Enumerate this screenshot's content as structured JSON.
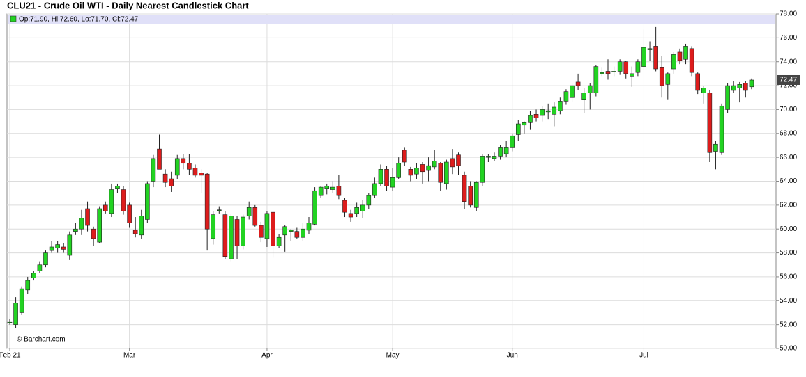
{
  "chart_data": {
    "type": "candlestick",
    "title": "CLU21 - Crude Oil WTI - Daily Nearest Candlestick Chart",
    "legend_text": "Op:71.90, Hi:72.60, Lo:71.70, Cl:72.47",
    "source": "© Barchart.com",
    "up_color": "#22d322",
    "down_color": "#dd1c1c",
    "grid": true,
    "categories": [
      "Feb 21",
      null,
      null,
      null,
      null,
      null,
      null,
      null,
      null,
      null,
      null,
      null,
      null,
      null,
      null,
      null,
      null,
      null,
      null,
      null,
      "Mar",
      null,
      null,
      null,
      null,
      null,
      null,
      null,
      null,
      null,
      null,
      null,
      null,
      null,
      null,
      null,
      null,
      null,
      null,
      null,
      null,
      null,
      null,
      "Apr",
      null,
      null,
      null,
      null,
      null,
      null,
      null,
      null,
      null,
      null,
      null,
      null,
      null,
      null,
      null,
      null,
      null,
      null,
      null,
      null,
      "May",
      null,
      null,
      null,
      null,
      null,
      null,
      null,
      null,
      null,
      null,
      null,
      null,
      null,
      null,
      null,
      null,
      null,
      null,
      null,
      "Jun",
      null,
      null,
      null,
      null,
      null,
      null,
      null,
      null,
      null,
      null,
      null,
      null,
      null,
      null,
      null,
      null,
      null,
      null,
      null,
      null,
      null,
      "Jul",
      null,
      null,
      null,
      null,
      null,
      null,
      null,
      null,
      null,
      null,
      null,
      null,
      null,
      null,
      null,
      null,
      null,
      null
    ],
    "open": [
      52.2,
      52.0,
      53.0,
      54.9,
      55.9,
      56.5,
      57.0,
      58.2,
      58.4,
      58.5,
      57.8,
      59.8,
      60.0,
      61.7,
      60.0,
      58.9,
      62.0,
      61.3,
      63.4,
      63.3,
      62.0,
      59.9,
      59.5,
      60.8,
      64.0,
      66.7,
      64.6,
      64.2,
      64.5,
      65.9,
      65.5,
      65.1,
      64.7,
      64.6,
      59.2,
      61.6,
      61.2,
      57.5,
      60.8,
      58.6,
      61.1,
      61.8,
      60.3,
      59.2,
      61.4,
      58.6,
      59.5,
      59.8,
      59.8,
      59.3,
      59.9,
      60.4,
      62.8,
      63.4,
      63.3,
      63.6,
      62.4,
      61.3,
      61.3,
      61.5,
      62.0,
      62.8,
      63.8,
      65.0,
      63.5,
      64.3,
      66.6,
      65.0,
      64.6,
      65.4,
      64.9,
      65.2,
      65.5,
      63.8,
      65.9,
      66.2,
      64.5,
      63.6,
      61.8,
      63.9,
      66.0,
      65.9,
      66.1,
      66.3,
      66.8,
      67.9,
      68.7,
      68.9,
      69.6,
      69.5,
      69.8,
      69.6,
      69.9,
      70.7,
      71.0,
      72.3,
      70.8,
      71.4,
      71.4,
      73.0,
      73.2,
      73.2,
      73.2,
      74.0,
      72.8,
      73.1,
      73.6,
      75.0,
      75.3,
      73.5,
      72.1,
      73.4,
      74.8,
      74.2,
      75.1,
      73.0,
      71.4,
      71.4,
      66.5,
      66.4,
      70.0,
      71.6,
      71.8,
      72.2,
      71.9
    ],
    "high": [
      52.5,
      54.3,
      55.2,
      56.0,
      56.5,
      57.3,
      58.2,
      59.0,
      59.0,
      58.8,
      59.8,
      60.5,
      61.6,
      62.3,
      60.2,
      61.9,
      62.3,
      63.8,
      63.8,
      63.6,
      62.2,
      61.0,
      61.6,
      64.0,
      66.2,
      67.9,
      65.0,
      64.8,
      66.2,
      66.3,
      66.3,
      65.4,
      65.0,
      64.7,
      61.5,
      61.9,
      61.5,
      61.3,
      61.1,
      61.2,
      62.3,
      62.0,
      60.6,
      61.5,
      61.5,
      59.6,
      60.3,
      60.0,
      60.1,
      60.5,
      61.0,
      63.5,
      63.6,
      63.8,
      64.0,
      64.5,
      62.6,
      61.6,
      62.2,
      62.4,
      63.0,
      64.3,
      65.4,
      65.3,
      65.1,
      66.0,
      66.8,
      65.2,
      65.5,
      65.6,
      66.0,
      66.6,
      65.6,
      65.8,
      66.7,
      66.4,
      64.8,
      64.0,
      64.0,
      66.3,
      66.3,
      66.4,
      67.0,
      67.4,
      68.0,
      69.1,
      69.0,
      69.9,
      70.0,
      70.3,
      70.5,
      70.6,
      71.0,
      71.7,
      72.2,
      73.0,
      71.8,
      72.2,
      73.7,
      73.5,
      74.2,
      73.6,
      74.2,
      74.1,
      73.6,
      74.2,
      76.7,
      75.7,
      76.9,
      74.5,
      73.1,
      74.8,
      75.1,
      75.5,
      75.3,
      73.1,
      72.0,
      71.6,
      67.4,
      70.5,
      72.2,
      72.4,
      72.3,
      72.4,
      72.6
    ],
    "low": [
      52.0,
      51.7,
      52.8,
      54.6,
      55.7,
      56.3,
      56.8,
      58.0,
      58.0,
      58.0,
      57.4,
      59.5,
      59.5,
      59.8,
      58.6,
      58.8,
      61.3,
      61.0,
      63.0,
      61.2,
      60.1,
      59.3,
      59.2,
      60.5,
      63.5,
      65.0,
      63.5,
      63.1,
      64.2,
      65.0,
      64.5,
      64.3,
      63.0,
      58.2,
      58.7,
      61.3,
      57.5,
      57.3,
      57.5,
      58.3,
      60.8,
      60.2,
      58.9,
      58.5,
      57.6,
      58.4,
      58.1,
      59.0,
      59.2,
      59.0,
      59.6,
      60.3,
      62.6,
      62.9,
      63.0,
      62.5,
      61.0,
      60.6,
      61.0,
      60.9,
      61.7,
      62.6,
      63.6,
      63.2,
      63.2,
      64.2,
      65.3,
      64.0,
      64.2,
      63.8,
      64.0,
      65.0,
      63.2,
      63.3,
      64.6,
      64.5,
      61.7,
      61.8,
      61.5,
      63.6,
      65.6,
      65.7,
      65.8,
      66.0,
      66.5,
      67.4,
      68.0,
      68.3,
      69.0,
      69.0,
      69.2,
      68.6,
      69.6,
      70.4,
      70.6,
      71.6,
      69.7,
      70.0,
      71.1,
      72.8,
      72.5,
      72.8,
      72.9,
      72.6,
      71.9,
      72.8,
      73.3,
      74.1,
      73.2,
      71.0,
      70.8,
      73.0,
      73.8,
      73.8,
      72.8,
      71.3,
      70.5,
      65.6,
      65.0,
      66.2,
      69.7,
      71.4,
      70.6,
      71.0,
      71.7
    ],
    "close": [
      52.2,
      53.8,
      55.0,
      55.7,
      56.3,
      57.0,
      58.0,
      58.5,
      58.7,
      58.3,
      59.5,
      60.0,
      60.9,
      60.3,
      59.2,
      61.7,
      61.5,
      63.3,
      63.6,
      61.5,
      60.5,
      59.6,
      61.1,
      63.8,
      65.9,
      65.0,
      63.9,
      63.6,
      65.9,
      65.5,
      65.0,
      64.5,
      64.5,
      60.0,
      61.2,
      61.6,
      57.7,
      61.1,
      58.6,
      61.0,
      61.8,
      60.3,
      59.3,
      61.3,
      58.6,
      59.3,
      60.2,
      59.9,
      59.3,
      60.0,
      60.5,
      63.2,
      63.5,
      63.6,
      63.5,
      62.8,
      61.4,
      61.0,
      61.8,
      62.0,
      62.8,
      63.8,
      65.0,
      63.6,
      64.3,
      65.5,
      65.6,
      64.5,
      65.1,
      64.8,
      65.3,
      65.7,
      63.9,
      65.6,
      65.2,
      65.3,
      62.3,
      62.0,
      63.9,
      66.1,
      66.1,
      66.1,
      66.8,
      66.8,
      67.8,
      68.8,
      68.9,
      69.5,
      69.3,
      70.0,
      69.9,
      70.2,
      70.7,
      71.5,
      72.0,
      72.0,
      71.4,
      72.0,
      73.6,
      73.1,
      73.0,
      73.2,
      74.0,
      73.0,
      73.0,
      74.0,
      75.2,
      75.1,
      73.4,
      72.0,
      73.0,
      74.6,
      74.1,
      75.3,
      73.1,
      71.6,
      71.8,
      66.4,
      67.1,
      70.3,
      72.0,
      72.0,
      72.1,
      71.6,
      72.47
    ],
    "ylim": [
      50,
      78
    ],
    "yticks": [
      {
        "value": 50,
        "label": "50.00"
      },
      {
        "value": 52,
        "label": "52.00"
      },
      {
        "value": 54,
        "label": "54.00"
      },
      {
        "value": 56,
        "label": "56.00"
      },
      {
        "value": 58,
        "label": "58.00"
      },
      {
        "value": 60,
        "label": "60.00"
      },
      {
        "value": 62,
        "label": "62.00"
      },
      {
        "value": 64,
        "label": "64.00"
      },
      {
        "value": 66,
        "label": "66.00"
      },
      {
        "value": 68,
        "label": "68.00"
      },
      {
        "value": 70,
        "label": "70.00"
      },
      {
        "value": 72,
        "label": "72.00"
      },
      {
        "value": 74,
        "label": "74.00"
      },
      {
        "value": 76,
        "label": "76.00"
      },
      {
        "value": 78,
        "label": "78.00"
      }
    ]
  }
}
